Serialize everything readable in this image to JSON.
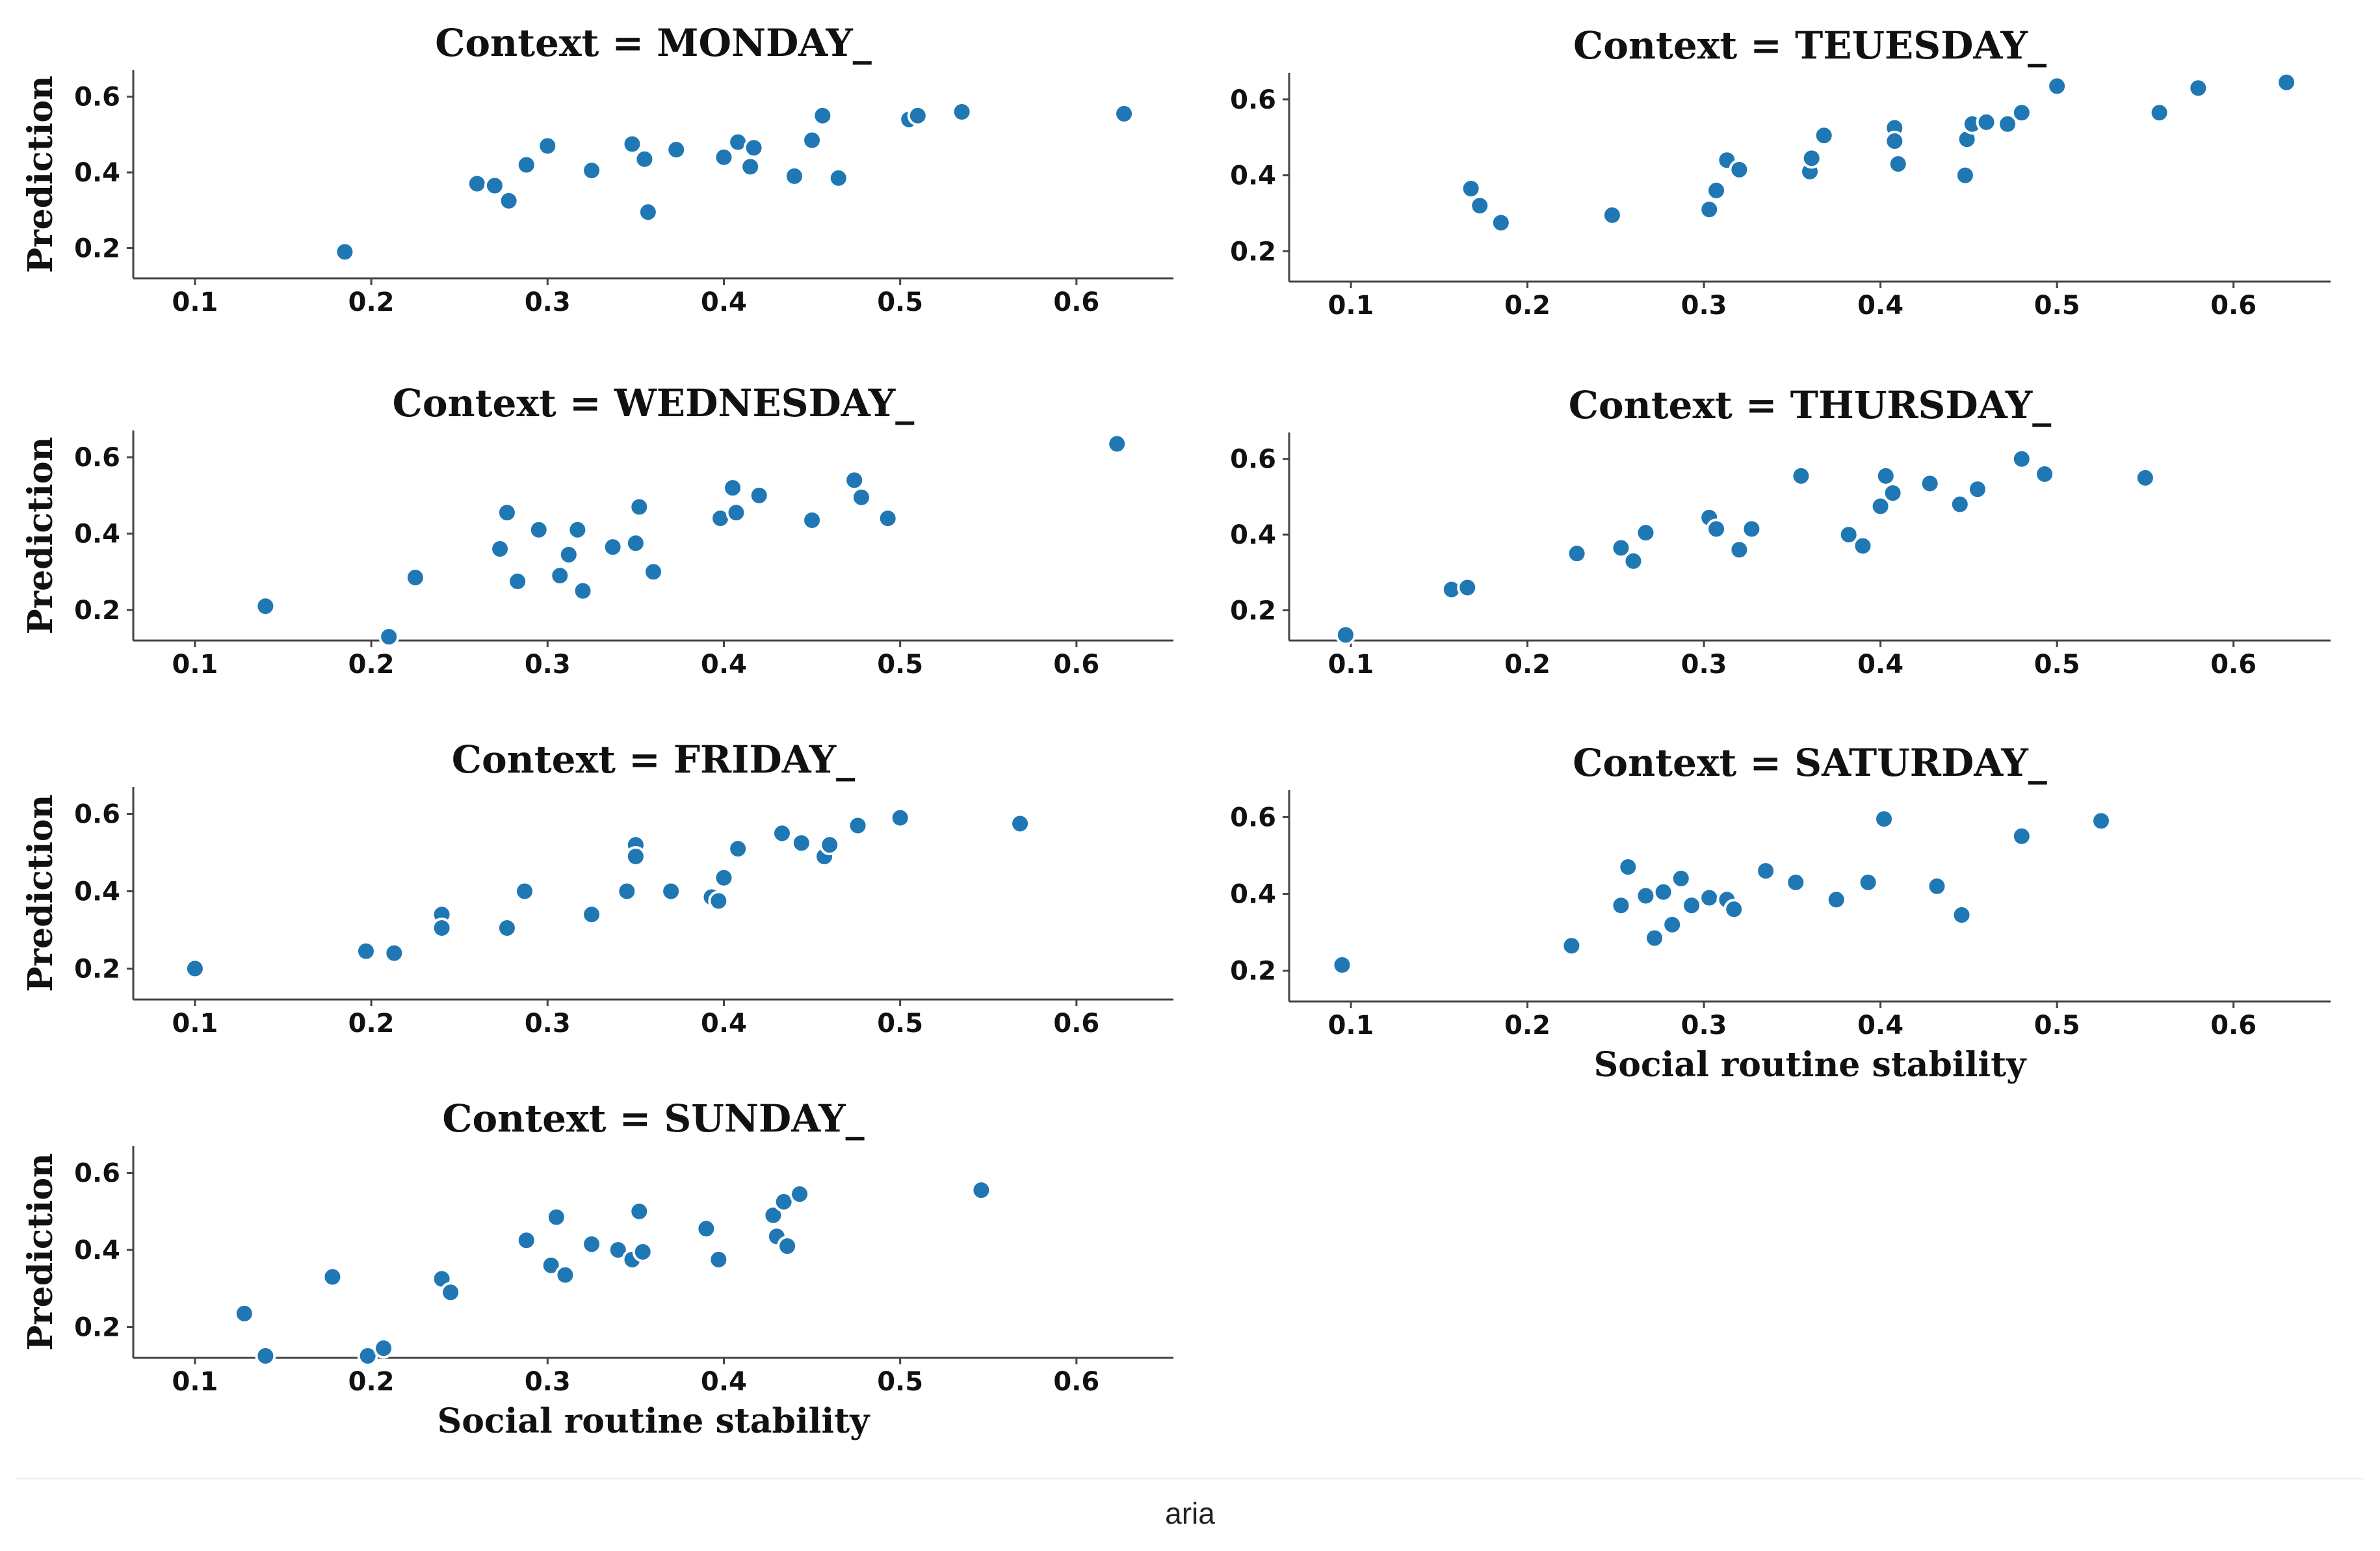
{
  "caption": "aria",
  "chart_data": [
    {
      "type": "scatter",
      "title": "Context = MONDAY_",
      "xlabel": "",
      "ylabel": "Prediction",
      "xlim": [
        0.065,
        0.655
      ],
      "ylim": [
        0.12,
        0.67
      ],
      "xticks": [
        0.1,
        0.2,
        0.3,
        0.4,
        0.5,
        0.6
      ],
      "yticks": [
        0.2,
        0.4,
        0.6
      ],
      "x": [
        0.185,
        0.26,
        0.27,
        0.278,
        0.288,
        0.3,
        0.325,
        0.348,
        0.355,
        0.357,
        0.373,
        0.4,
        0.408,
        0.415,
        0.417,
        0.44,
        0.45,
        0.456,
        0.465,
        0.505,
        0.51,
        0.535,
        0.627
      ],
      "y": [
        0.19,
        0.37,
        0.365,
        0.325,
        0.42,
        0.47,
        0.405,
        0.475,
        0.435,
        0.295,
        0.46,
        0.44,
        0.48,
        0.415,
        0.465,
        0.39,
        0.485,
        0.55,
        0.385,
        0.54,
        0.55,
        0.56,
        0.555
      ]
    },
    {
      "type": "scatter",
      "title": "Context = TEUESDAY_",
      "xlabel": "",
      "ylabel": "",
      "xlim": [
        0.065,
        0.655
      ],
      "ylim": [
        0.12,
        0.67
      ],
      "xticks": [
        0.1,
        0.2,
        0.3,
        0.4,
        0.5,
        0.6
      ],
      "yticks": [
        0.2,
        0.4,
        0.6
      ],
      "x": [
        0.168,
        0.173,
        0.185,
        0.248,
        0.303,
        0.307,
        0.313,
        0.32,
        0.36,
        0.361,
        0.368,
        0.408,
        0.408,
        0.41,
        0.448,
        0.449,
        0.452,
        0.46,
        0.472,
        0.48,
        0.5,
        0.558,
        0.58,
        0.63
      ],
      "y": [
        0.365,
        0.32,
        0.275,
        0.295,
        0.31,
        0.36,
        0.44,
        0.415,
        0.41,
        0.445,
        0.505,
        0.525,
        0.49,
        0.43,
        0.4,
        0.495,
        0.535,
        0.54,
        0.535,
        0.565,
        0.635,
        0.565,
        0.63,
        0.645
      ]
    },
    {
      "type": "scatter",
      "title": "Context = WEDNESDAY_",
      "xlabel": "",
      "ylabel": "Prediction",
      "xlim": [
        0.065,
        0.655
      ],
      "ylim": [
        0.12,
        0.67
      ],
      "xticks": [
        0.1,
        0.2,
        0.3,
        0.4,
        0.5,
        0.6
      ],
      "yticks": [
        0.2,
        0.4,
        0.6
      ],
      "x": [
        0.14,
        0.21,
        0.225,
        0.273,
        0.277,
        0.283,
        0.295,
        0.307,
        0.312,
        0.317,
        0.32,
        0.337,
        0.35,
        0.352,
        0.36,
        0.398,
        0.405,
        0.407,
        0.42,
        0.45,
        0.474,
        0.478,
        0.493,
        0.623
      ],
      "y": [
        0.21,
        0.13,
        0.285,
        0.36,
        0.455,
        0.275,
        0.41,
        0.29,
        0.345,
        0.41,
        0.25,
        0.365,
        0.375,
        0.47,
        0.3,
        0.44,
        0.52,
        0.455,
        0.5,
        0.435,
        0.54,
        0.495,
        0.44,
        0.635
      ]
    },
    {
      "type": "scatter",
      "title": "Context = THURSDAY_",
      "xlabel": "",
      "ylabel": "",
      "xlim": [
        0.065,
        0.655
      ],
      "ylim": [
        0.12,
        0.67
      ],
      "xticks": [
        0.1,
        0.2,
        0.3,
        0.4,
        0.5,
        0.6
      ],
      "yticks": [
        0.2,
        0.4,
        0.6
      ],
      "x": [
        0.097,
        0.157,
        0.166,
        0.228,
        0.253,
        0.26,
        0.267,
        0.303,
        0.307,
        0.32,
        0.327,
        0.355,
        0.382,
        0.39,
        0.4,
        0.403,
        0.407,
        0.428,
        0.445,
        0.455,
        0.48,
        0.493,
        0.55
      ],
      "y": [
        0.135,
        0.255,
        0.26,
        0.35,
        0.365,
        0.33,
        0.405,
        0.445,
        0.415,
        0.36,
        0.415,
        0.555,
        0.4,
        0.37,
        0.475,
        0.555,
        0.51,
        0.535,
        0.48,
        0.52,
        0.6,
        0.56,
        0.55
      ]
    },
    {
      "type": "scatter",
      "title": "Context = FRIDAY_",
      "xlabel": "",
      "ylabel": "Prediction",
      "xlim": [
        0.065,
        0.655
      ],
      "ylim": [
        0.12,
        0.67
      ],
      "xticks": [
        0.1,
        0.2,
        0.3,
        0.4,
        0.5,
        0.6
      ],
      "yticks": [
        0.2,
        0.4,
        0.6
      ],
      "x": [
        0.1,
        0.197,
        0.213,
        0.24,
        0.24,
        0.277,
        0.287,
        0.325,
        0.345,
        0.35,
        0.35,
        0.37,
        0.393,
        0.397,
        0.4,
        0.408,
        0.433,
        0.444,
        0.457,
        0.46,
        0.476,
        0.5,
        0.568
      ],
      "y": [
        0.2,
        0.245,
        0.24,
        0.34,
        0.305,
        0.305,
        0.4,
        0.34,
        0.4,
        0.52,
        0.49,
        0.4,
        0.385,
        0.375,
        0.435,
        0.51,
        0.55,
        0.525,
        0.49,
        0.52,
        0.57,
        0.59,
        0.575
      ]
    },
    {
      "type": "scatter",
      "title": "Context = SATURDAY_",
      "xlabel": "Social routine stability",
      "ylabel": "",
      "xlim": [
        0.065,
        0.655
      ],
      "ylim": [
        0.12,
        0.67
      ],
      "xticks": [
        0.1,
        0.2,
        0.3,
        0.4,
        0.5,
        0.6
      ],
      "yticks": [
        0.2,
        0.4,
        0.6
      ],
      "x": [
        0.095,
        0.225,
        0.253,
        0.257,
        0.267,
        0.272,
        0.277,
        0.282,
        0.287,
        0.293,
        0.303,
        0.313,
        0.317,
        0.335,
        0.352,
        0.375,
        0.393,
        0.402,
        0.432,
        0.446,
        0.48,
        0.525
      ],
      "y": [
        0.215,
        0.265,
        0.37,
        0.47,
        0.395,
        0.285,
        0.405,
        0.32,
        0.44,
        0.37,
        0.39,
        0.385,
        0.36,
        0.46,
        0.43,
        0.385,
        0.43,
        0.595,
        0.42,
        0.345,
        0.55,
        0.59
      ]
    },
    {
      "type": "scatter",
      "title": "Context = SUNDAY_",
      "xlabel": "Social routine stability",
      "ylabel": "Prediction",
      "xlim": [
        0.065,
        0.655
      ],
      "ylim": [
        0.12,
        0.67
      ],
      "xticks": [
        0.1,
        0.2,
        0.3,
        0.4,
        0.5,
        0.6
      ],
      "yticks": [
        0.2,
        0.4,
        0.6
      ],
      "x": [
        0.128,
        0.14,
        0.178,
        0.198,
        0.207,
        0.24,
        0.245,
        0.288,
        0.302,
        0.305,
        0.31,
        0.325,
        0.34,
        0.348,
        0.352,
        0.354,
        0.39,
        0.397,
        0.428,
        0.43,
        0.434,
        0.436,
        0.443,
        0.546
      ],
      "y": [
        0.235,
        0.125,
        0.33,
        0.125,
        0.145,
        0.325,
        0.29,
        0.425,
        0.36,
        0.485,
        0.335,
        0.415,
        0.4,
        0.375,
        0.5,
        0.395,
        0.455,
        0.375,
        0.49,
        0.435,
        0.525,
        0.41,
        0.545,
        0.555
      ]
    }
  ]
}
